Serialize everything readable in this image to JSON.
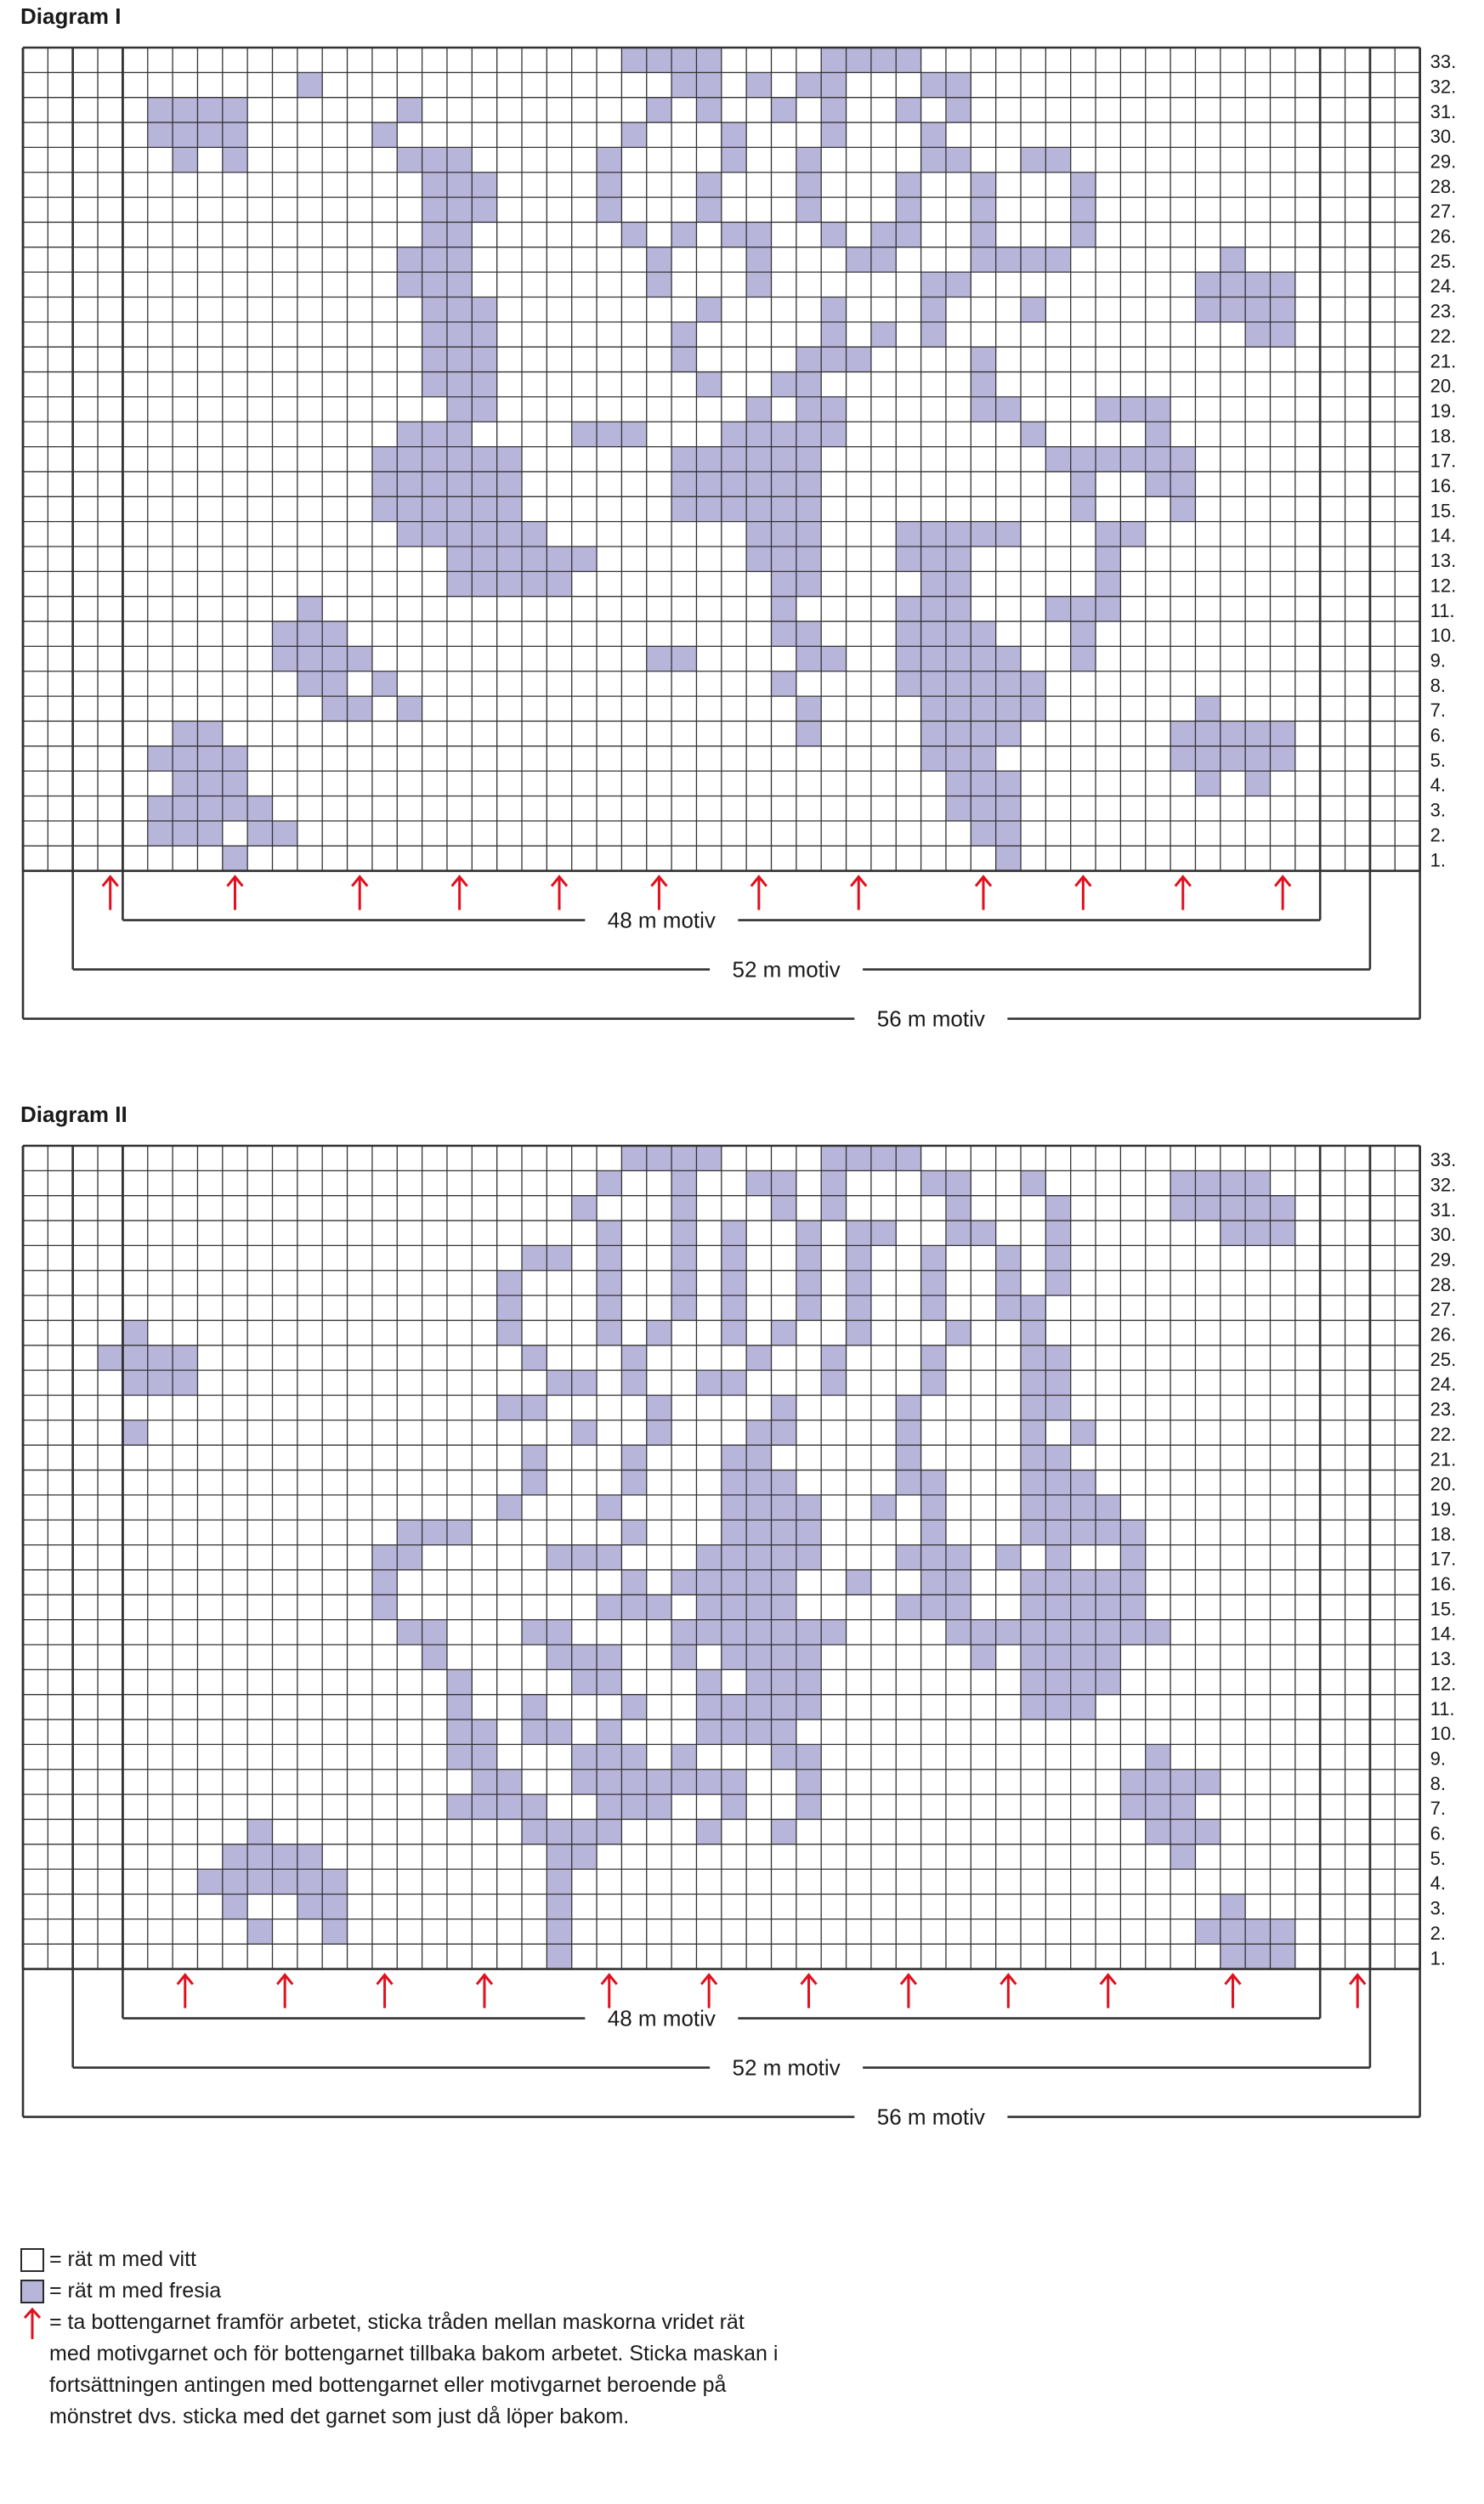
{
  "colors": {
    "fresia": "#b8b5db",
    "white": "#ffffff",
    "grid": "#333333",
    "arrow": "#e0101e"
  },
  "diagram1": {
    "title": "Diagram I",
    "rows": 33,
    "cols": 56,
    "arrow_cols": [
      3,
      8,
      13,
      17,
      21,
      25,
      29,
      33,
      38,
      42,
      46,
      50
    ],
    "brackets": [
      {
        "label": "48 m motiv",
        "from_col": 4,
        "to_col": 52
      },
      {
        "label": "52 m motiv",
        "from_col": 2,
        "to_col": 54
      },
      {
        "label": "56 m motiv",
        "from_col": 0,
        "to_col": 56
      }
    ],
    "pattern": [
      "........................####....####....................",
      "...........#..............##.#.##...##..................",
      ".....####......#.........#.#..#.#..#.#..................",
      ".....####.....#.........#...#...#...#...................",
      "......#.#......###.....#....#..#....##..##..............",
      "................###....#...#...#...#..#...#.............",
      "................###....#...#...#...#..#...#.............",
      "................##......#.#.##..#.##..#...#.............",
      "...............###.......#...#...##...####......#.......",
      "...............###.......#...#......##.........####.....",
      "................###........#....#...#...#......####.....",
      "................###.......#.....#.#.#............##.....",
      "................###.......#....###....#.................",
      "................###........#..##......#.................",
      ".................##..........#.##.....##...###..........",
      "...............###....###...#####.......#....#..........",
      "..............######......######.........######.........",
      "..............######......######..........#..##.........",
      "..............######......######..........#...#.........",
      "...............######........###...#####...##...........",
      ".................######......###...###.....#............",
      ".................#####........##....##.....#............",
      "...........#..................#....###...###............",
      "..........###.................##...####...#.............",
      "..........####...........##....##..#####..#.............",
      "...........##.#...............#....######...............",
      "............##.#...............#....#####......#........",
      "......##.......................#....####......#####.....",
      ".....####...........................###.......#####.....",
      "......###............................###.......#.#......",
      ".....#####...........................###................",
      ".....###.##...........................##................",
      "........#..............................#................"
    ]
  },
  "diagram2": {
    "title": "Diagram II",
    "rows": 33,
    "cols": 56,
    "arrow_cols": [
      6,
      10,
      14,
      18,
      23,
      27,
      31,
      35,
      39,
      43,
      48,
      53
    ],
    "brackets": [
      {
        "label": "48 m motiv",
        "from_col": 4,
        "to_col": 52
      },
      {
        "label": "52 m motiv",
        "from_col": 2,
        "to_col": 54
      },
      {
        "label": "56 m motiv",
        "from_col": 0,
        "to_col": 56
      }
    ],
    "pattern": [
      "........................####....####....................",
      ".......................#..#..##.#...##..#.....####......",
      "......................#...#...#.#....#...#....#####.....",
      ".......................#..#.#..#.##..##..#......###.....",
      "....................##.#..#.#..#.#..#..#.#..............",
      "...................#...#..#.#..#.#..#..#.#..............",
      "...................#...#..#.#..#.#..#..##...............",
      "....#..............#...#.#..#.#..#...#..#...............",
      "...####.............#...#....#..#...#...##..............",
      "....###..............##.#..##...#...#...##..............",
      "...................##....#....#....#....##..............",
      "....#.................#..#...##....#....#.#.............",
      "....................#...#...##.....#....##..............",
      "....................#...#...###....##...###.............",
      "...................#...#....####..#.#...####............",
      "...............###......#...####....#...#####...........",
      "..............##.....###...#####...###.#.#..#...........",
      "..............#.........#.#####..#..##..#####...........",
      "..............#........###.####....###..#####...........",
      "...............##...##....#######....#########..........",
      "................#....###..#.####......#.####............",
      ".................#....##...#.###........####............",
      ".................#..#...#..#####........###.............",
      ".................##.##.#...####.........................",
      ".................##...###.#...##.............#..........",
      "..................##..#######..#............####........",
      ".................####..###..#..#............###.........",
      ".........#..........####...#..#..............###........",
      "........####.........##.......................#.........",
      ".......######........#..................................",
      "........#..##........#..........................#.......",
      ".........#..#........#.........................####.....",
      ".....................#..........................###....."
    ]
  },
  "legend": {
    "white_text": "= rät m med vitt",
    "fresia_text": "= rät m med fresia",
    "arrow_text": "= ta bottengarnet framför arbetet, sticka tråden mellan maskorna vridet rät med motivgarnet och för bottengarnet tillbaka bakom arbetet. Sticka maskan i fortsättningen antingen med bottengarnet eller motivgarnet beroende på mönstret dvs. sticka med det garnet som just då löper bakom."
  }
}
